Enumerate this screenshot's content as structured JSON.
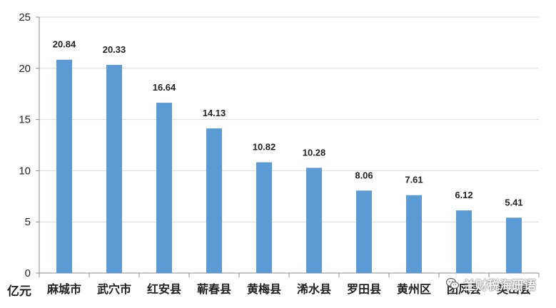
{
  "unit_label": "亿元",
  "watermark": {
    "text": "兰财税海研语",
    "icon": "wechat-icon"
  },
  "colors": {
    "bar": "#5B9BD5",
    "axis": "#8C8C8C",
    "grid": "#D9D9D9",
    "text": "#222222",
    "value_label": "#222222"
  },
  "chart_data": {
    "type": "bar",
    "categories": [
      "麻城市",
      "武穴市",
      "红安县",
      "蕲春县",
      "黄梅县",
      "浠水县",
      "罗田县",
      "黄州区",
      "团风县",
      "英山县"
    ],
    "values": [
      20.84,
      20.33,
      16.64,
      14.13,
      10.82,
      10.28,
      8.06,
      7.61,
      6.12,
      5.41
    ],
    "value_labels": [
      "20.84",
      "20.33",
      "16.64",
      "14.13",
      "10.82",
      "10.28",
      "8.06",
      "7.61",
      "6.12",
      "5.41"
    ],
    "ylim": [
      0,
      25
    ],
    "yticks": [
      0,
      5,
      10,
      15,
      20,
      25
    ],
    "ylabel": "亿元",
    "xlabel": "",
    "title": "",
    "grid": true
  }
}
